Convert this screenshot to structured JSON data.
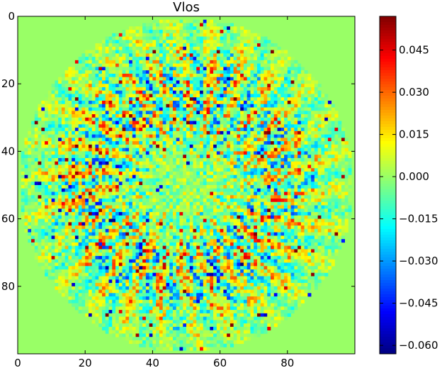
{
  "chart_data": {
    "type": "heatmap",
    "title": "Vlos",
    "xlabel": "",
    "ylabel": "",
    "grid_shape": [
      100,
      100
    ],
    "xlim": [
      0,
      100
    ],
    "ylim": [
      100,
      0
    ],
    "x_ticks": [
      0,
      20,
      40,
      60,
      80
    ],
    "y_ticks": [
      0,
      20,
      40,
      60,
      80
    ],
    "colormap": "jet",
    "color_limits": [
      -0.063,
      0.057
    ],
    "colorbar_ticks": [
      {
        "value": 0.045,
        "label": "0.045"
      },
      {
        "value": 0.03,
        "label": "0.030"
      },
      {
        "value": 0.015,
        "label": "0.015"
      },
      {
        "value": 0.0,
        "label": "0.000"
      },
      {
        "value": -0.015,
        "label": "−0.015"
      },
      {
        "value": -0.03,
        "label": "−0.030"
      },
      {
        "value": -0.045,
        "label": "−0.045"
      },
      {
        "value": -0.06,
        "label": "−0.060"
      }
    ],
    "background_value": 0.0,
    "disk_center": [
      49.5,
      49.5
    ],
    "disk_radius": 49.5,
    "pattern": "noisy radial spokes (~26 around the disk), amplitude strongest in an annulus between radius ~15 and ~40, weak near center",
    "spoke_count": 26,
    "annulus_peak_radius": 27,
    "typical_amplitude": 0.03
  }
}
